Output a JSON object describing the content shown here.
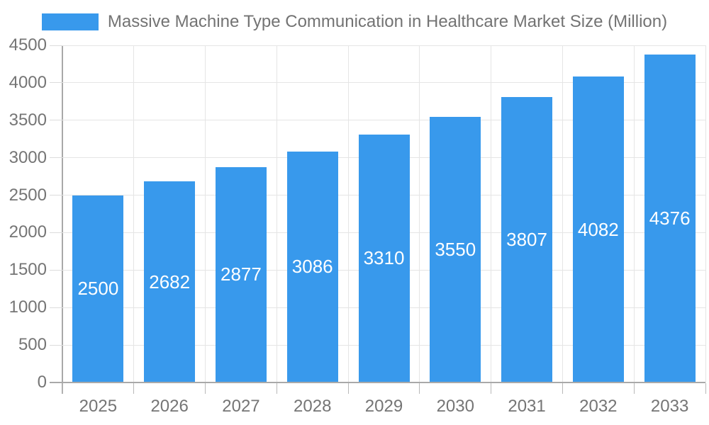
{
  "legend": {
    "label": "Massive Machine Type Communication in Healthcare Market Size (Million)",
    "swatch_color": "#3899EC"
  },
  "colors": {
    "bar": "#3899EC",
    "legend_text": "#737373",
    "axis_text": "#757575",
    "value_label_text": "#ffffff",
    "gridline": "#e5e5e5",
    "axis_line": "#a9a9a9",
    "background": "#ffffff"
  },
  "chart_data": {
    "type": "bar",
    "title": "Massive Machine Type Communication in Healthcare Market Size (Million)",
    "categories": [
      "2025",
      "2026",
      "2027",
      "2028",
      "2029",
      "2030",
      "2031",
      "2032",
      "2033"
    ],
    "series": [
      {
        "name": "Massive Machine Type Communication in Healthcare Market Size (Million)",
        "values": [
          2500,
          2682,
          2877,
          3086,
          3310,
          3550,
          3807,
          4082,
          4376
        ]
      }
    ],
    "values": [
      2500,
      2682,
      2877,
      3086,
      3310,
      3550,
      3807,
      4082,
      4376
    ],
    "value_labels": [
      "2500",
      "2682",
      "2877",
      "3086",
      "3310",
      "3550",
      "3807",
      "4082",
      "4376"
    ],
    "xlabel": "",
    "ylabel": "",
    "ylim": [
      0,
      4500
    ],
    "ytick_step": 500,
    "ytick_labels": [
      "0",
      "500",
      "1000",
      "1500",
      "2000",
      "2500",
      "3000",
      "3500",
      "4000",
      "4500"
    ],
    "grid": true,
    "legend_position": "top",
    "value_label_position": "inside-center"
  }
}
